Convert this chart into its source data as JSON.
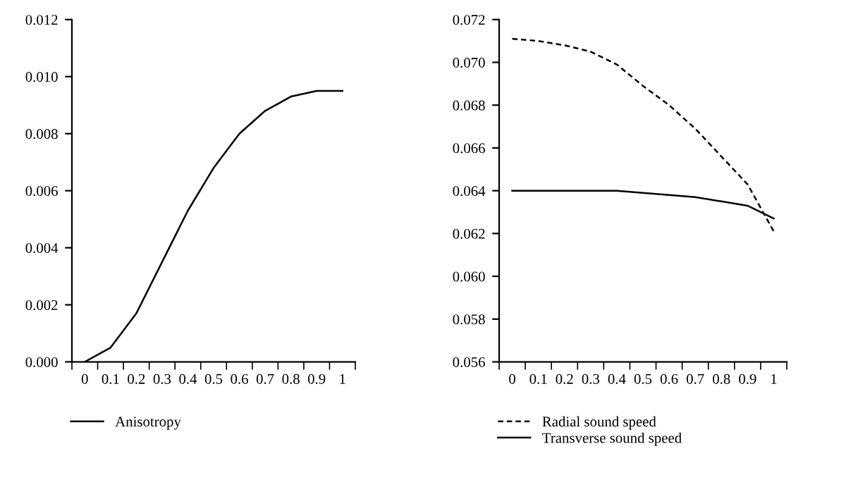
{
  "chart_data": [
    {
      "type": "line",
      "categories": [
        "0",
        "0.1",
        "0.2",
        "0.3",
        "0.4",
        "0.5",
        "0.6",
        "0.7",
        "0.8",
        "0.9",
        "1"
      ],
      "series": [
        {
          "name": "Anisotropy",
          "color": "#000000",
          "line_style": "solid",
          "values": [
            0.0,
            0.0005,
            0.0017,
            0.0035,
            0.0053,
            0.0068,
            0.008,
            0.0088,
            0.0093,
            0.0095,
            0.0095
          ]
        }
      ],
      "ylim": [
        0.0,
        0.012
      ],
      "yticks": [
        {
          "value": 0.0,
          "label": "0.000"
        },
        {
          "value": 0.002,
          "label": "0.002"
        },
        {
          "value": 0.004,
          "label": "0.004"
        },
        {
          "value": 0.006,
          "label": "0.006"
        },
        {
          "value": 0.008,
          "label": "0.008"
        },
        {
          "value": 0.01,
          "label": "0.010"
        },
        {
          "value": 0.012,
          "label": "0.012"
        }
      ],
      "grid": false,
      "legend": "bottom"
    },
    {
      "type": "line",
      "categories": [
        "0",
        "0.1",
        "0.2",
        "0.3",
        "0.4",
        "0.5",
        "0.6",
        "0.7",
        "0.8",
        "0.9",
        "1"
      ],
      "series": [
        {
          "name": "Radial sound speed",
          "color": "#000000",
          "line_style": "dashed",
          "values": [
            0.0711,
            0.071,
            0.0708,
            0.0705,
            0.0699,
            0.0689,
            0.068,
            0.0669,
            0.0656,
            0.0643,
            0.0621
          ]
        },
        {
          "name": "Transverse sound speed",
          "color": "#000000",
          "line_style": "solid",
          "values": [
            0.064,
            0.064,
            0.064,
            0.064,
            0.064,
            0.0639,
            0.0638,
            0.0637,
            0.0635,
            0.0633,
            0.0627
          ]
        }
      ],
      "ylim": [
        0.056,
        0.072
      ],
      "yticks": [
        {
          "value": 0.056,
          "label": "0.056"
        },
        {
          "value": 0.058,
          "label": "0.058"
        },
        {
          "value": 0.06,
          "label": "0.060"
        },
        {
          "value": 0.062,
          "label": "0.062"
        },
        {
          "value": 0.064,
          "label": "0.064"
        },
        {
          "value": 0.066,
          "label": "0.066"
        },
        {
          "value": 0.068,
          "label": "0.068"
        },
        {
          "value": 0.07,
          "label": "0.070"
        },
        {
          "value": 0.072,
          "label": "0.072"
        }
      ],
      "grid": false,
      "legend": "bottom"
    }
  ]
}
